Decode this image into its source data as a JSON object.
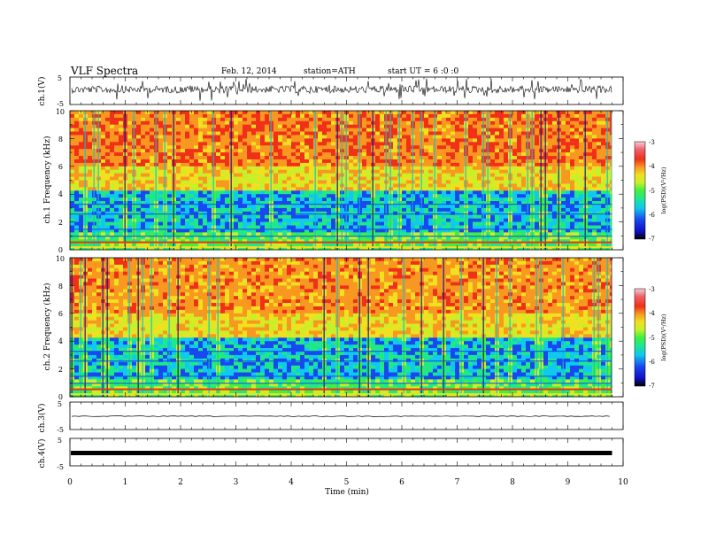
{
  "header": {
    "title": "VLF Spectra",
    "date": "Feb. 12, 2014",
    "station": "station=ATH",
    "start": "start UT = 6 :0 :0"
  },
  "chart_data": [
    {
      "type": "line",
      "panel": "ch1-waveform",
      "ylabel": "ch.1(V)",
      "ylim": [
        -5,
        5
      ],
      "yticks": [
        "5",
        "-5"
      ],
      "xlim": [
        0,
        10
      ],
      "data_end_min": 9.8,
      "series": [
        {
          "values_note": "dense noise-like waveform around 0 V, amplitude about ±1.5 V",
          "color": "#000000"
        }
      ]
    },
    {
      "type": "heatmap",
      "panel": "ch1-spectrogram",
      "ylabel": "ch.1 Frequency (kHz)",
      "ylim": [
        0,
        10
      ],
      "yticks": [
        "0",
        "2",
        "4",
        "6",
        "8",
        "10"
      ],
      "xlim": [
        0,
        10
      ],
      "colorbar": {
        "label": "log(PSD) (V²/Hz)",
        "range": [
          -7,
          -3
        ],
        "ticks": [
          "-3",
          "-4",
          "-5",
          "-6",
          "-7"
        ]
      }
    },
    {
      "type": "heatmap",
      "panel": "ch2-spectrogram",
      "ylabel": "ch.2 Frequency (kHz)",
      "ylim": [
        0,
        10
      ],
      "yticks": [
        "0",
        "2",
        "4",
        "6",
        "8",
        "10"
      ],
      "xlim": [
        0,
        10
      ],
      "colorbar": {
        "label": "log(PSD) (V²/Hz)",
        "range": [
          -7,
          -3
        ],
        "ticks": [
          "-3",
          "-4",
          "-5",
          "-6",
          "-7"
        ]
      }
    },
    {
      "type": "line",
      "panel": "ch3-waveform",
      "ylabel": "ch.3(V)",
      "ylim": [
        -5,
        5
      ],
      "yticks": [
        "5",
        "-5"
      ],
      "xlim": [
        0,
        10
      ],
      "series": [
        {
          "values_note": "near-constant around -1 V",
          "color": "#000000"
        }
      ]
    },
    {
      "type": "line",
      "panel": "ch4-waveform",
      "ylabel": "ch.4(V)",
      "ylim": [
        -5,
        5
      ],
      "yticks": [
        "5",
        "-5"
      ],
      "xlim": [
        0,
        10
      ],
      "series": [
        {
          "values_note": "thick band around 0 V",
          "color": "#000000"
        }
      ]
    }
  ],
  "xaxis": {
    "label": "Time (min)",
    "ticks": [
      "0",
      "1",
      "2",
      "3",
      "4",
      "5",
      "6",
      "7",
      "8",
      "9",
      "10"
    ]
  },
  "colorbar_labels": {
    "ch1": "log(PSD)(V²/Hz)",
    "ch2": "log(PSD)(V²/Hz)"
  },
  "colors": {
    "palette": [
      "#000000",
      "#1010c0",
      "#1848f0",
      "#10c8f0",
      "#20e888",
      "#40f040",
      "#c8f028",
      "#f0e020",
      "#f89820",
      "#f03018",
      "#f06070",
      "#f8d0d0"
    ]
  }
}
